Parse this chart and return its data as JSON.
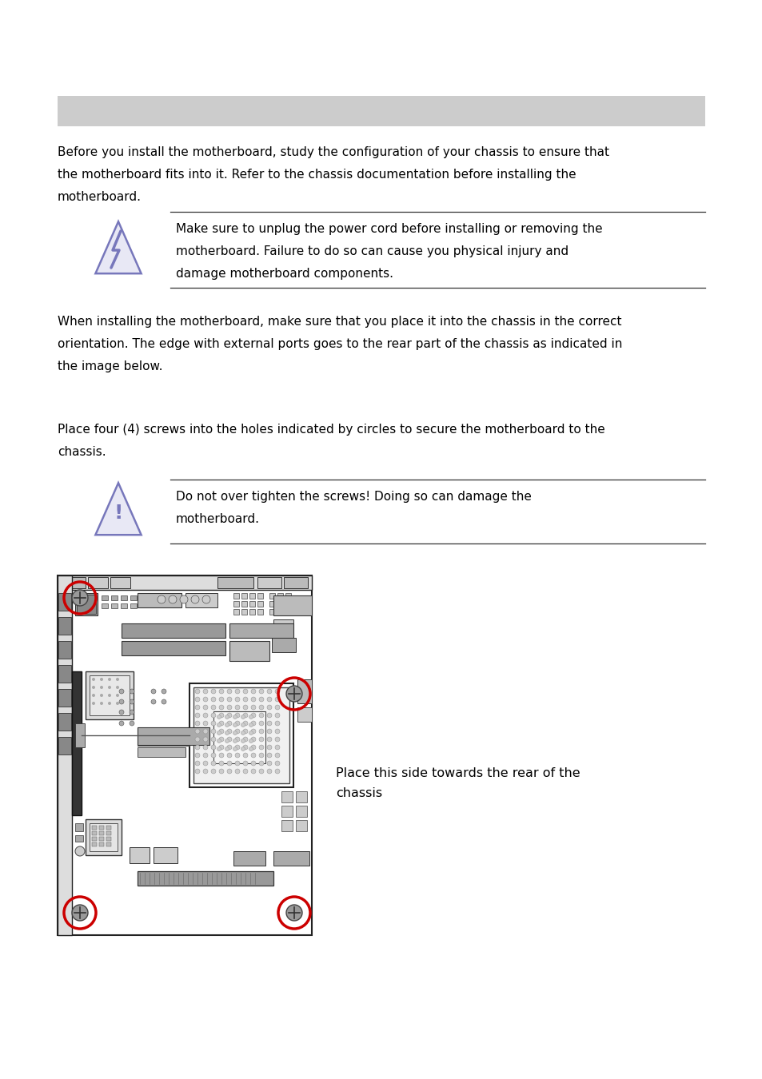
{
  "bg_color": "#ffffff",
  "header_bar_color": "#c8c8c8",
  "text_color": "#000000",
  "warn_line_color": "#555555",
  "font_size_body": 11.0,
  "font_size_warn": 11.0,
  "font_size_caption": 11.0,
  "para1": "Before you install the motherboard, study the configuration of your chassis to ensure that\nthe motherboard fits into it. Refer to the chassis documentation before installing the\nmotherboard.",
  "warn1_text": "Make sure to unplug the power cord before installing or removing the\nmotherboard. Failure to do so can cause you physical injury and\ndamage motherboard components.",
  "para2": "When installing the motherboard, make sure that you place it into the chassis in the correct\norientation. The edge with external ports goes to the rear part of the chassis as indicated in\nthe image below.",
  "para3": "Place four (4) screws into the holes indicated by circles to secure the motherboard to the\nchassis.",
  "warn2_text": "Do not over tighten the screws! Doing so can damage the\nmotherboard.",
  "caption_text": "Place this side towards the rear of the\nchassis",
  "screw_hole_color": "#cc0000"
}
